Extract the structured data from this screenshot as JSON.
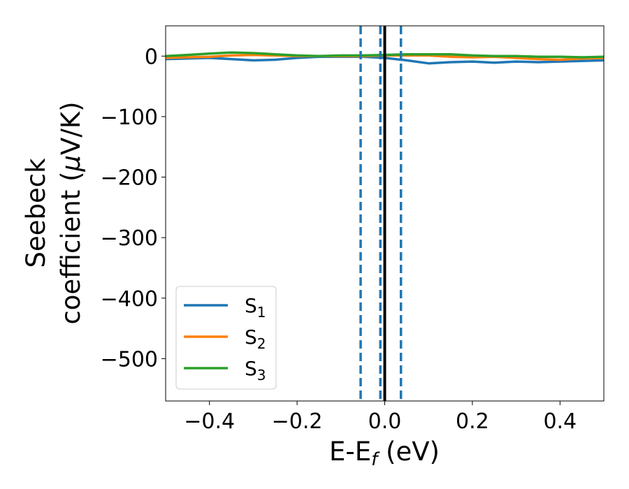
{
  "chart_data": {
    "type": "line",
    "xlabel_main": "E-E",
    "xlabel_sub": "f",
    "xlabel_unit": " (eV)",
    "ylabel_line1": "Seebeck",
    "ylabel_line2_pre": "coefficient  (",
    "ylabel_mu": "μ",
    "ylabel_line2_post": "V/K)",
    "xlim": [
      -0.5,
      0.5
    ],
    "ylim": [
      -570,
      50
    ],
    "xticks": [
      -0.4,
      -0.2,
      0.0,
      0.2,
      0.4
    ],
    "xtick_labels": [
      "−0.4",
      "−0.2",
      "0.0",
      "0.2",
      "0.4"
    ],
    "yticks": [
      0,
      -100,
      -200,
      -300,
      -400,
      -500
    ],
    "ytick_labels": [
      "0",
      "−100",
      "−200",
      "−300",
      "−400",
      "−500"
    ],
    "vlines_dashed": [
      -0.055,
      -0.01,
      0.037
    ],
    "vline_solid": 0.0,
    "vline_dashed_color": "#1f77b4",
    "vline_solid_color": "#000000",
    "legend_placement": "lower-left",
    "grid": false,
    "series": [
      {
        "name": "S",
        "sub": "1",
        "color": "#1f77b4",
        "x": [
          -0.5,
          -0.45,
          -0.4,
          -0.35,
          -0.3,
          -0.25,
          -0.2,
          -0.15,
          -0.1,
          -0.05,
          0.0,
          0.05,
          0.1,
          0.15,
          0.2,
          0.25,
          0.3,
          0.35,
          0.4,
          0.45,
          0.5
        ],
        "y": [
          -5,
          -4,
          -3,
          -5,
          -7,
          -6,
          -3,
          -1,
          -1,
          -1,
          -3,
          -7,
          -12,
          -10,
          -9,
          -11,
          -9,
          -10,
          -9,
          -8,
          -7
        ]
      },
      {
        "name": "S",
        "sub": "2",
        "color": "#ff7f0e",
        "x": [
          -0.5,
          -0.45,
          -0.4,
          -0.35,
          -0.3,
          -0.25,
          -0.2,
          -0.15,
          -0.1,
          -0.05,
          0.0,
          0.05,
          0.1,
          0.15,
          0.2,
          0.25,
          0.3,
          0.35,
          0.4,
          0.45,
          0.5
        ],
        "y": [
          -3,
          -2,
          -1,
          1,
          2,
          1,
          0,
          0,
          0,
          0,
          1,
          1,
          1,
          -1,
          -2,
          -1,
          -3,
          -5,
          -6,
          -4,
          -3
        ]
      },
      {
        "name": "S",
        "sub": "3",
        "color": "#2ca02c",
        "x": [
          -0.5,
          -0.45,
          -0.4,
          -0.35,
          -0.3,
          -0.25,
          -0.2,
          -0.15,
          -0.1,
          -0.05,
          0.0,
          0.05,
          0.1,
          0.15,
          0.2,
          0.25,
          0.3,
          0.35,
          0.4,
          0.45,
          0.5
        ],
        "y": [
          0,
          2,
          4,
          6,
          5,
          3,
          1,
          0,
          1,
          1,
          2,
          3,
          3,
          3,
          1,
          0,
          0,
          -1,
          -1,
          -2,
          -1
        ]
      }
    ]
  }
}
